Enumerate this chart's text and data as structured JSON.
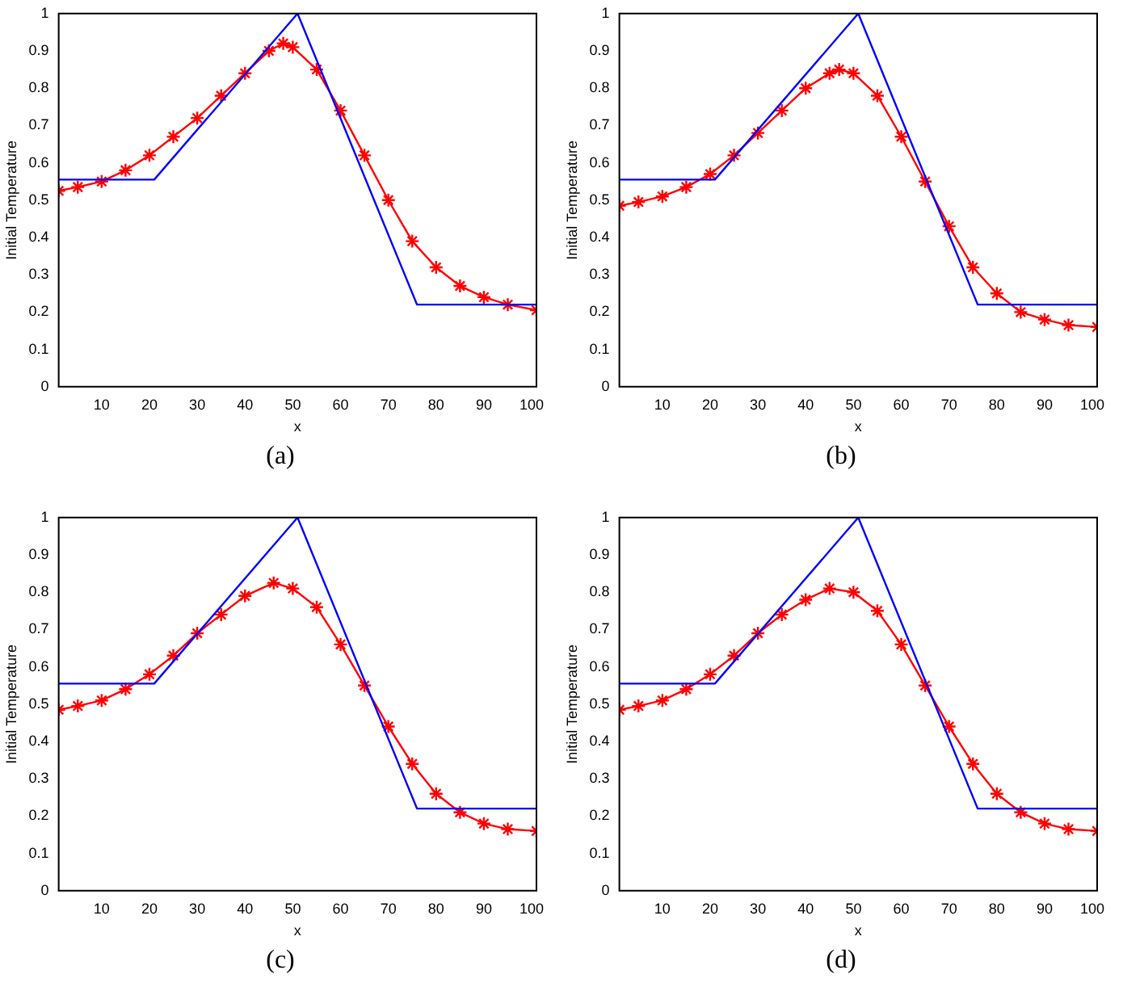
{
  "chart_data": [
    {
      "type": "line",
      "xlabel": "x",
      "ylabel": "Initial Temperature",
      "annotations": [
        "(a)"
      ],
      "xlim": [
        1,
        101
      ],
      "xticks": [
        10,
        20,
        30,
        40,
        50,
        60,
        70,
        80,
        90,
        100
      ],
      "ylim": [
        0,
        1
      ],
      "yticks": [
        0,
        0.1,
        0.2,
        0.3,
        0.4,
        0.5,
        0.6,
        0.7,
        0.8,
        0.9,
        1
      ],
      "grid": false,
      "legend": false,
      "series": [
        {
          "color": "#0000ff",
          "marker": "none",
          "line_style": "solid",
          "x": [
            1,
            21,
            51,
            76,
            101
          ],
          "values": [
            0.555,
            0.555,
            1,
            0.22,
            0.22
          ]
        },
        {
          "color": "#ff0000",
          "marker": "cross",
          "line_style": "solid",
          "x": [
            1,
            5,
            10,
            15,
            20,
            25,
            30,
            35,
            40,
            45,
            48,
            50,
            55,
            60,
            65,
            70,
            75,
            80,
            85,
            90,
            95,
            101
          ],
          "values": [
            0.525,
            0.535,
            0.55,
            0.58,
            0.62,
            0.67,
            0.72,
            0.78,
            0.84,
            0.9,
            0.92,
            0.91,
            0.85,
            0.74,
            0.62,
            0.5,
            0.39,
            0.32,
            0.27,
            0.24,
            0.22,
            0.205
          ]
        }
      ]
    },
    {
      "type": "line",
      "xlabel": "x",
      "ylabel": "Initial Temperature",
      "annotations": [
        "(b)"
      ],
      "xlim": [
        1,
        101
      ],
      "xticks": [
        10,
        20,
        30,
        40,
        50,
        60,
        70,
        80,
        90,
        100
      ],
      "ylim": [
        0,
        1
      ],
      "yticks": [
        0,
        0.1,
        0.2,
        0.3,
        0.4,
        0.5,
        0.6,
        0.7,
        0.8,
        0.9,
        1
      ],
      "grid": false,
      "legend": false,
      "series": [
        {
          "color": "#0000ff",
          "marker": "none",
          "line_style": "solid",
          "x": [
            1,
            21,
            51,
            76,
            101
          ],
          "values": [
            0.555,
            0.555,
            1,
            0.22,
            0.22
          ]
        },
        {
          "color": "#ff0000",
          "marker": "cross",
          "line_style": "solid",
          "x": [
            1,
            5,
            10,
            15,
            20,
            25,
            30,
            35,
            40,
            45,
            47,
            50,
            55,
            60,
            65,
            70,
            75,
            80,
            85,
            90,
            95,
            101
          ],
          "values": [
            0.485,
            0.495,
            0.51,
            0.535,
            0.57,
            0.62,
            0.68,
            0.74,
            0.8,
            0.84,
            0.85,
            0.84,
            0.78,
            0.67,
            0.55,
            0.43,
            0.32,
            0.25,
            0.2,
            0.18,
            0.165,
            0.16
          ]
        }
      ]
    },
    {
      "type": "line",
      "xlabel": "x",
      "ylabel": "Initial Temperature",
      "annotations": [
        "(c)"
      ],
      "xlim": [
        1,
        101
      ],
      "xticks": [
        10,
        20,
        30,
        40,
        50,
        60,
        70,
        80,
        90,
        100
      ],
      "ylim": [
        0,
        1
      ],
      "yticks": [
        0,
        0.1,
        0.2,
        0.3,
        0.4,
        0.5,
        0.6,
        0.7,
        0.8,
        0.9,
        1
      ],
      "grid": false,
      "legend": false,
      "series": [
        {
          "color": "#0000ff",
          "marker": "none",
          "line_style": "solid",
          "x": [
            1,
            21,
            51,
            76,
            101
          ],
          "values": [
            0.555,
            0.555,
            1,
            0.22,
            0.22
          ]
        },
        {
          "color": "#ff0000",
          "marker": "cross",
          "line_style": "solid",
          "x": [
            1,
            5,
            10,
            15,
            20,
            25,
            30,
            35,
            40,
            46,
            50,
            55,
            60,
            65,
            70,
            75,
            80,
            85,
            90,
            95,
            101
          ],
          "values": [
            0.485,
            0.495,
            0.51,
            0.54,
            0.58,
            0.63,
            0.69,
            0.74,
            0.79,
            0.825,
            0.81,
            0.76,
            0.66,
            0.55,
            0.44,
            0.34,
            0.26,
            0.21,
            0.18,
            0.165,
            0.16
          ]
        }
      ]
    },
    {
      "type": "line",
      "xlabel": "x",
      "ylabel": "Initial Temperature",
      "annotations": [
        "(d)"
      ],
      "xlim": [
        1,
        101
      ],
      "xticks": [
        10,
        20,
        30,
        40,
        50,
        60,
        70,
        80,
        90,
        100
      ],
      "ylim": [
        0,
        1
      ],
      "yticks": [
        0,
        0.1,
        0.2,
        0.3,
        0.4,
        0.5,
        0.6,
        0.7,
        0.8,
        0.9,
        1
      ],
      "grid": false,
      "legend": false,
      "series": [
        {
          "color": "#0000ff",
          "marker": "none",
          "line_style": "solid",
          "x": [
            1,
            21,
            51,
            76,
            101
          ],
          "values": [
            0.555,
            0.555,
            1,
            0.22,
            0.22
          ]
        },
        {
          "color": "#ff0000",
          "marker": "cross",
          "line_style": "solid",
          "x": [
            1,
            5,
            10,
            15,
            20,
            25,
            30,
            35,
            40,
            45,
            50,
            55,
            60,
            65,
            70,
            75,
            80,
            85,
            90,
            95,
            101
          ],
          "values": [
            0.485,
            0.495,
            0.51,
            0.54,
            0.58,
            0.63,
            0.69,
            0.74,
            0.78,
            0.81,
            0.8,
            0.75,
            0.66,
            0.55,
            0.44,
            0.34,
            0.26,
            0.21,
            0.18,
            0.165,
            0.16
          ]
        }
      ]
    }
  ]
}
